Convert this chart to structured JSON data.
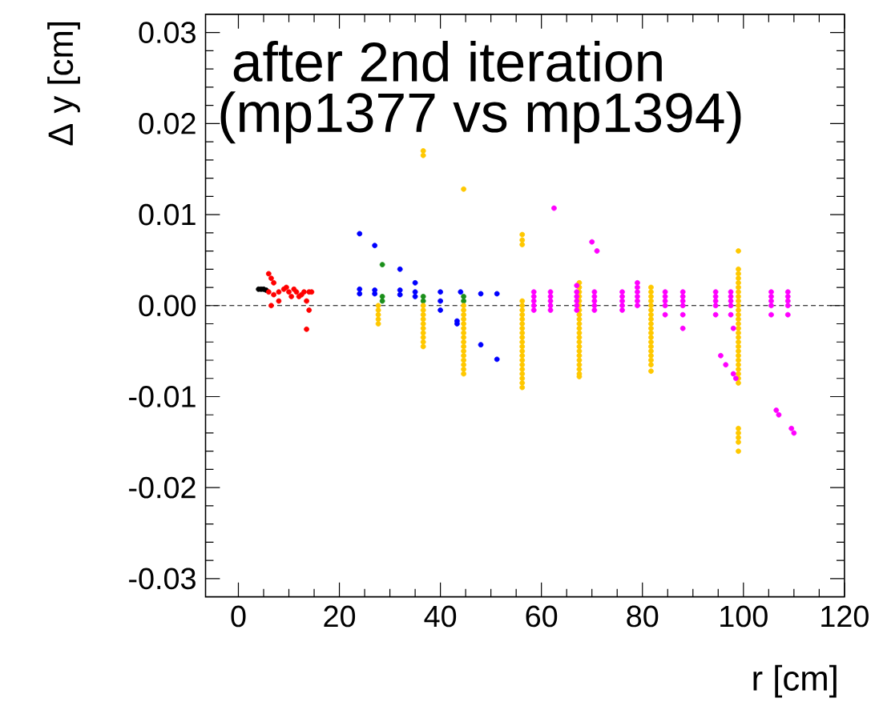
{
  "chart_data": {
    "type": "scatter",
    "title": "after 2nd iteration",
    "subtitle": "(mp1377 vs mp1394)",
    "xlabel": "r [cm]",
    "ylabel": "Δ y [cm]",
    "xlim": [
      -6.5,
      120
    ],
    "ylim": [
      -0.032,
      0.032
    ],
    "xticks": [
      0,
      20,
      40,
      60,
      80,
      100,
      120
    ],
    "yticks": [
      {
        "value": -0.03,
        "label": "-0.03"
      },
      {
        "value": -0.02,
        "label": "-0.02"
      },
      {
        "value": -0.01,
        "label": "-0.01"
      },
      {
        "value": 0,
        "label": "0.00"
      },
      {
        "value": 0.01,
        "label": "0.01"
      },
      {
        "value": 0.02,
        "label": "0.02"
      },
      {
        "value": 0.03,
        "label": "0.03"
      }
    ],
    "grid": false,
    "ref_lines": [
      {
        "axis": "y",
        "value": 0,
        "color": "#000000",
        "line_style": "dashed"
      }
    ],
    "series": [
      {
        "color": "#000000",
        "x": [
          4,
          4.5,
          5,
          5.5
        ],
        "values": [
          0.0018,
          0.0018,
          0.0018,
          0.0017
        ]
      },
      {
        "color": "#ff0000",
        "x": [
          6,
          6.5,
          7,
          6,
          7,
          8,
          8,
          9,
          9.5,
          10,
          10.5,
          11,
          11.5,
          12,
          12.5,
          13,
          13.5,
          14,
          14.5,
          14,
          13.5,
          6.5
        ],
        "values": [
          0.0035,
          0.003,
          0.0025,
          0.0015,
          0.0012,
          0.0015,
          0.0005,
          0.0018,
          0.002,
          0.0015,
          0.001,
          0.0018,
          0.0015,
          0.001,
          0.0012,
          0.0015,
          0.0005,
          0.0015,
          0.0015,
          -0.0005,
          -0.0026,
          0.0
        ]
      },
      {
        "color": "#0000ff",
        "x": [
          24,
          27,
          32,
          24,
          24,
          27,
          27,
          32,
          32,
          35,
          35,
          35,
          40,
          40,
          40,
          44,
          43.3,
          43.3,
          48,
          48,
          51.2,
          51.2
        ],
        "values": [
          0.0079,
          0.0066,
          0.004,
          0.0018,
          0.0013,
          0.0017,
          0.0013,
          0.0017,
          0.0012,
          0.0025,
          0.0015,
          0.001,
          0.0015,
          0.0005,
          -0.0005,
          0.0015,
          -0.0017,
          -0.002,
          0.0013,
          -0.0043,
          0.0013,
          -0.0059
        ]
      },
      {
        "color": "#1a8f1a",
        "x": [
          28.5,
          28.5,
          28.5,
          36.6,
          36.6,
          44.6,
          44.6
        ],
        "values": [
          0.0045,
          0.001,
          0.0005,
          0.001,
          0.0005,
          0.001,
          0.0005
        ]
      },
      {
        "color": "#ffc800",
        "x": [
          27.7,
          27.7,
          27.7,
          27.7,
          27.7,
          36.6,
          36.6,
          36.6,
          36.6,
          36.6,
          36.6,
          36.6,
          36.6,
          36.6,
          36.6,
          36.6,
          36.6,
          44.6,
          44.6,
          44.6,
          44.6,
          44.6,
          44.6,
          44.6,
          44.6,
          44.6,
          44.6,
          44.6,
          44.6,
          44.6,
          44.6,
          44.6,
          44.6,
          44.6,
          56.2,
          56.2,
          56.2,
          56.2,
          56.2,
          56.2,
          56.2,
          56.2,
          56.2,
          56.2,
          56.2,
          56.2,
          56.2,
          56.2,
          56.2,
          56.2,
          56.2,
          56.2,
          56.2,
          56.2,
          56.2,
          56.2,
          56.2,
          67.5,
          67.5,
          67.5,
          67.5,
          67.5,
          67.5,
          67.5,
          67.5,
          67.5,
          67.5,
          67.5,
          67.5,
          67.5,
          67.5,
          67.5,
          67.5,
          67.5,
          67.5,
          67.5,
          67.5,
          67.5,
          67.5,
          81.7,
          81.7,
          81.7,
          81.7,
          81.7,
          81.7,
          81.7,
          81.7,
          81.7,
          81.7,
          81.7,
          81.7,
          81.7,
          81.7,
          81.7,
          81.7,
          81.7,
          81.7,
          81.7,
          99,
          99,
          99,
          99,
          99,
          99,
          99,
          99,
          99,
          99,
          99,
          99,
          99,
          99,
          99,
          99,
          99,
          99,
          99,
          99,
          99,
          99,
          99,
          99,
          99,
          99,
          99,
          99,
          99,
          99,
          99,
          99
        ],
        "values": [
          0,
          -0.0005,
          -0.001,
          -0.0015,
          -0.002,
          0.017,
          0.0165,
          0,
          -0.0005,
          -0.001,
          -0.0015,
          -0.002,
          -0.0025,
          -0.003,
          -0.0035,
          -0.004,
          -0.0045,
          0.0128,
          0,
          -0.0005,
          -0.001,
          -0.0015,
          -0.002,
          -0.0025,
          -0.003,
          -0.0035,
          -0.004,
          -0.0045,
          -0.005,
          -0.0055,
          -0.006,
          -0.0065,
          -0.007,
          -0.0075,
          0.0078,
          0.0072,
          0.0067,
          0.0005,
          0,
          -0.0005,
          -0.001,
          -0.0015,
          -0.002,
          -0.0025,
          -0.003,
          -0.0035,
          -0.004,
          -0.0045,
          -0.005,
          -0.0055,
          -0.006,
          -0.0065,
          -0.007,
          -0.0075,
          -0.008,
          -0.0085,
          -0.009,
          0.0025,
          0.002,
          0.0015,
          0.001,
          0.0005,
          0,
          -0.0005,
          -0.001,
          -0.0015,
          -0.002,
          -0.0025,
          -0.003,
          -0.0035,
          -0.004,
          -0.0045,
          -0.005,
          -0.0055,
          -0.006,
          -0.0065,
          -0.007,
          -0.0075,
          -0.0078,
          0.002,
          0.0015,
          0.001,
          0.0005,
          0,
          -0.0005,
          -0.001,
          -0.0015,
          -0.002,
          -0.0025,
          -0.003,
          -0.0035,
          -0.004,
          -0.0045,
          -0.005,
          -0.0055,
          -0.006,
          -0.0065,
          -0.0072,
          0.006,
          0.004,
          0.0035,
          0.003,
          0.0025,
          0.002,
          0.0015,
          0.001,
          0.0005,
          0,
          -0.0005,
          -0.001,
          -0.0015,
          -0.002,
          -0.0025,
          -0.003,
          -0.0035,
          -0.004,
          -0.0045,
          -0.005,
          -0.0055,
          -0.006,
          -0.0065,
          -0.007,
          -0.0075,
          -0.008,
          -0.0085,
          -0.0135,
          -0.014,
          -0.0145,
          -0.015,
          -0.016
        ]
      },
      {
        "color": "#ff00ff",
        "x": [
          58.5,
          58.5,
          58.5,
          58.5,
          58.5,
          61.8,
          61.8,
          61.8,
          61.8,
          61.8,
          67,
          67,
          67,
          67,
          67,
          67,
          70.5,
          70.5,
          70.5,
          70.5,
          70.5,
          76,
          76,
          76,
          76,
          76,
          79,
          79,
          79,
          79,
          79,
          79,
          84.5,
          84.5,
          84.5,
          84.5,
          84.5,
          88,
          88,
          88,
          88,
          88,
          94.5,
          94.5,
          94.5,
          94.5,
          94.5,
          97.5,
          97.5,
          97.5,
          97.5,
          97.5,
          105.5,
          105.5,
          105.5,
          105.5,
          105.5,
          108.8,
          108.8,
          108.8,
          108.8,
          108.8,
          62.5,
          70,
          71,
          88,
          95.5,
          96.5,
          98,
          98.5,
          98,
          106.5,
          107,
          109.5,
          110
        ],
        "values": [
          0.0015,
          0.001,
          0.0005,
          0,
          -0.0005,
          0.0015,
          0.001,
          0.0005,
          0,
          -0.0005,
          0.0022,
          0.0015,
          0.001,
          0.0005,
          0,
          -0.0005,
          0.0015,
          0.001,
          0.0005,
          0,
          -0.0005,
          0.0015,
          0.001,
          0.0005,
          0,
          -0.0005,
          0.0025,
          0.002,
          0.0015,
          0.001,
          0.0005,
          0,
          0.0015,
          0.001,
          0.0005,
          0,
          -0.001,
          0.0015,
          0.001,
          0.0005,
          0,
          -0.001,
          0.0015,
          0.001,
          0.0005,
          0,
          -0.001,
          0.0015,
          0.001,
          0.0005,
          0,
          -0.001,
          0.0015,
          0.001,
          0.0005,
          0,
          -0.001,
          0.0015,
          0.001,
          0.0005,
          0,
          -0.001,
          0.0107,
          0.007,
          0.006,
          -0.0025,
          -0.0055,
          -0.0065,
          -0.0075,
          -0.008,
          -0.0025,
          -0.0115,
          -0.012,
          -0.0135,
          -0.014
        ]
      }
    ]
  }
}
